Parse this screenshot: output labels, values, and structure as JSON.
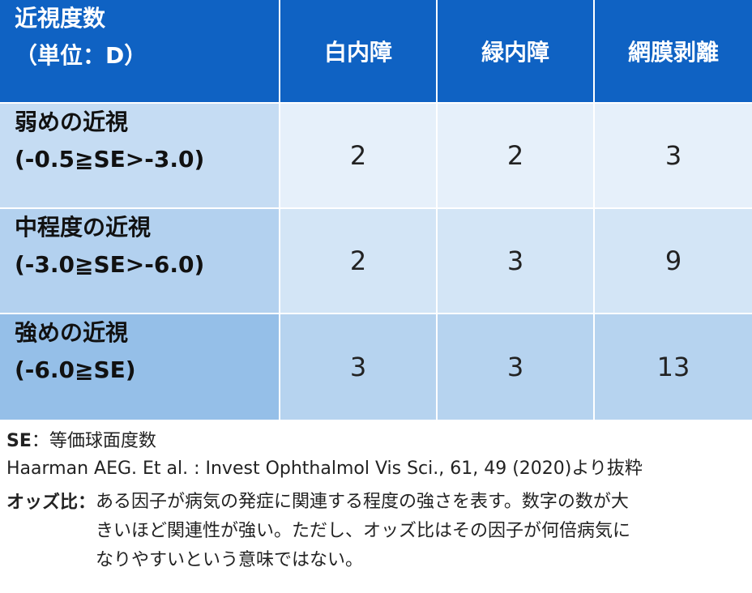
{
  "table": {
    "header": {
      "first_line1": "近視度数",
      "first_line2": "（単位：D）",
      "columns": [
        "白内障",
        "緑内障",
        "網膜剥離"
      ]
    },
    "rows": [
      {
        "label1": "弱めの近視",
        "label2": "(-0.5≧SE>-3.0)",
        "values": [
          "2",
          "2",
          "3"
        ]
      },
      {
        "label1": "中程度の近視",
        "label2": "(-3.0≧SE>-6.0)",
        "values": [
          "2",
          "3",
          "9"
        ]
      },
      {
        "label1": "強めの近視",
        "label2": "(-6.0≧SE)",
        "values": [
          "3",
          "3",
          "13"
        ]
      }
    ]
  },
  "notes": {
    "se_term": "SE",
    "se_def": "：等価球面度数",
    "source": "Haarman AEG. Et al. : Invest Ophthalmol Vis Sci., 61, 49 (2020)より抜粋",
    "odds_label": "オッズ比：",
    "odds_lines": [
      "ある因子が病気の発症に関連する程度の強さを表す。数字の数が大",
      "きいほど関連性が強い。ただし、オッズ比はその因子が何倍病気に",
      "なりやすいという意味ではない。"
    ]
  },
  "colors": {
    "header": "#0f62c3",
    "row1_label": "#c5dcf3",
    "row1_value": "#e6f0fa",
    "row2_label": "#b3d1ef",
    "row2_value": "#d3e5f6",
    "row3_label": "#95bfe8",
    "row3_value": "#b6d3ef"
  }
}
